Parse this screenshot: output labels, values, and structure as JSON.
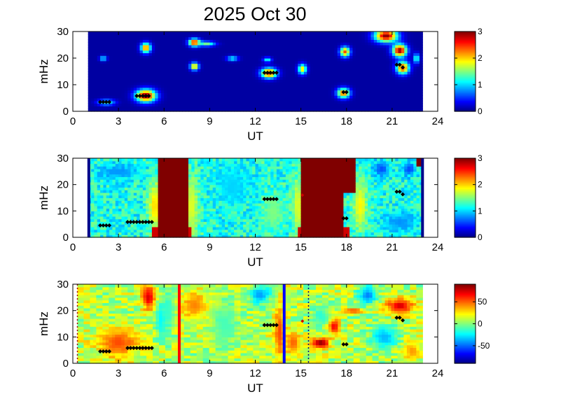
{
  "figure": {
    "title": "2025 Oct 30"
  },
  "chart_data": [
    {
      "type": "heatmap",
      "xlabel": "UT",
      "ylabel": "mHz",
      "xlim": [
        0,
        24
      ],
      "ylim": [
        0,
        30
      ],
      "xticks": [
        0,
        3,
        6,
        9,
        12,
        15,
        18,
        21,
        24
      ],
      "yticks": [
        0,
        10,
        20,
        30
      ],
      "data_range_x": [
        1,
        23
      ],
      "colorbar": {
        "min": 0,
        "max": 3,
        "ticks": [
          0,
          1,
          2,
          3
        ]
      },
      "background_value": 0.1,
      "blobs": [
        {
          "x": 4.8,
          "y": 6,
          "rx": 0.7,
          "ry": 2.5,
          "v": 3.0
        },
        {
          "x": 2.2,
          "y": 3.5,
          "rx": 0.6,
          "ry": 1.2,
          "v": 1.3
        },
        {
          "x": 4.8,
          "y": 24,
          "rx": 0.35,
          "ry": 2,
          "v": 2.4
        },
        {
          "x": 8.0,
          "y": 26,
          "rx": 0.4,
          "ry": 1.5,
          "v": 2.8
        },
        {
          "x": 8.8,
          "y": 25.5,
          "rx": 0.6,
          "ry": 1.0,
          "v": 1.5
        },
        {
          "x": 8.0,
          "y": 17,
          "rx": 0.3,
          "ry": 1.5,
          "v": 2.2
        },
        {
          "x": 12.9,
          "y": 14.5,
          "rx": 0.55,
          "ry": 2.0,
          "v": 2.7
        },
        {
          "x": 15.1,
          "y": 16,
          "rx": 0.3,
          "ry": 2,
          "v": 2.0
        },
        {
          "x": 17.8,
          "y": 7,
          "rx": 0.45,
          "ry": 2.0,
          "v": 2.4
        },
        {
          "x": 17.9,
          "y": 22.5,
          "rx": 0.35,
          "ry": 2,
          "v": 2.4
        },
        {
          "x": 20.6,
          "y": 28.5,
          "rx": 0.8,
          "ry": 2.5,
          "v": 3.0
        },
        {
          "x": 21.5,
          "y": 23,
          "rx": 0.5,
          "ry": 2.5,
          "v": 3.0
        },
        {
          "x": 21.7,
          "y": 16.5,
          "rx": 0.45,
          "ry": 2.5,
          "v": 2.6
        },
        {
          "x": 2.0,
          "y": 20,
          "rx": 0.25,
          "ry": 1,
          "v": 1.2
        },
        {
          "x": 10.5,
          "y": 20,
          "rx": 0.4,
          "ry": 1,
          "v": 1.2
        },
        {
          "x": 12.8,
          "y": 19.5,
          "rx": 0.3,
          "ry": 1,
          "v": 1.2
        },
        {
          "x": 22.6,
          "y": 20,
          "rx": 0.2,
          "ry": 2,
          "v": 1.4
        }
      ],
      "markers": [
        {
          "x": [
            1.8,
            2.0,
            2.2,
            2.4
          ],
          "y": 3.5
        },
        {
          "x": [
            4.2,
            4.4,
            4.6,
            4.8,
            5.0
          ],
          "y": 5.8
        },
        {
          "x": [
            12.6,
            12.8,
            13.0,
            13.2,
            13.4
          ],
          "y": 14.5
        },
        {
          "x": [
            17.8,
            18.0
          ],
          "y": 7.2
        },
        {
          "x": [
            21.3,
            21.5
          ],
          "y": 17.5
        },
        {
          "x": [
            21.7
          ],
          "y": 16.5
        }
      ]
    },
    {
      "type": "heatmap",
      "xlabel": "UT",
      "ylabel": "mHz",
      "xlim": [
        0,
        24
      ],
      "ylim": [
        0,
        30
      ],
      "xticks": [
        0,
        3,
        6,
        9,
        12,
        15,
        18,
        21,
        24
      ],
      "yticks": [
        0,
        10,
        20,
        30
      ],
      "data_range_x": [
        1,
        23
      ],
      "colorbar": {
        "min": 0,
        "max": 3,
        "ticks": [
          0,
          1,
          2,
          3
        ]
      },
      "background_value": 1.2,
      "edge_lines": [
        1.05,
        23.0
      ],
      "saturated_regions": [
        {
          "x0": 5.6,
          "x1": 7.5,
          "y0": 0,
          "y1": 30
        },
        {
          "x0": 15.1,
          "x1": 17.8,
          "y0": 0,
          "y1": 30
        },
        {
          "x0": 17.8,
          "x1": 18.6,
          "y0": 17,
          "y1": 30
        },
        {
          "x0": 22.6,
          "x1": 23.0,
          "y0": 27,
          "y1": 30
        }
      ],
      "blobs": [
        {
          "x": 5.4,
          "y": 12,
          "rx": 0.5,
          "ry": 10,
          "v": 2.0
        },
        {
          "x": 7.8,
          "y": 12,
          "rx": 0.5,
          "ry": 12,
          "v": 1.8
        },
        {
          "x": 14.8,
          "y": 12,
          "rx": 0.4,
          "ry": 12,
          "v": 1.8
        },
        {
          "x": 18.9,
          "y": 12,
          "rx": 0.5,
          "ry": 10,
          "v": 1.9
        },
        {
          "x": 3.0,
          "y": 25,
          "rx": 1.5,
          "ry": 3,
          "v": 0.8
        },
        {
          "x": 20.3,
          "y": 26,
          "rx": 0.6,
          "ry": 3,
          "v": 0.6
        },
        {
          "x": 22.1,
          "y": 26,
          "rx": 0.5,
          "ry": 3,
          "v": 0.6
        },
        {
          "x": 10.5,
          "y": 20,
          "rx": 1.2,
          "ry": 8,
          "v": 1.0
        },
        {
          "x": 13.2,
          "y": 10,
          "rx": 0.8,
          "ry": 8,
          "v": 1.5
        },
        {
          "x": 21.5,
          "y": 6,
          "rx": 1.2,
          "ry": 4,
          "v": 0.8
        }
      ],
      "markers": [
        {
          "x": [
            1.8,
            2.0,
            2.2,
            2.4
          ],
          "y": 4.5
        },
        {
          "x": [
            3.6,
            3.8,
            4.0,
            4.2,
            4.4,
            4.6,
            4.8,
            5.0,
            5.2
          ],
          "y": 5.8
        },
        {
          "x": [
            12.6,
            12.8,
            13.0,
            13.2,
            13.4
          ],
          "y": 14.5
        },
        {
          "x": [
            17.8,
            18.0
          ],
          "y": 7.2
        },
        {
          "x": [
            21.3,
            21.5
          ],
          "y": 17.3
        },
        {
          "x": [
            21.7
          ],
          "y": 16.3
        }
      ],
      "red_markers": [
        {
          "x": 15.1,
          "y": 16
        }
      ]
    },
    {
      "type": "heatmap",
      "xlabel": "UT",
      "ylabel": "mHz",
      "xlim": [
        0,
        24
      ],
      "ylim": [
        0,
        30
      ],
      "xticks": [
        0,
        3,
        6,
        9,
        12,
        15,
        18,
        21,
        24
      ],
      "yticks": [
        0,
        10,
        20,
        30
      ],
      "data_range_x": [
        0.3,
        23
      ],
      "colorbar": {
        "min": -90,
        "max": 90,
        "ticks": [
          50,
          0,
          -50
        ]
      },
      "background_value": 10,
      "vertical_lines": [
        {
          "x": 7.0,
          "color": "#ff0000"
        },
        {
          "x": 13.9,
          "color": "#0000ff"
        }
      ],
      "dotted_lines": [
        {
          "x": 0.3,
          "color": "#aa0000"
        },
        {
          "x": 15.5,
          "color": "#000080"
        }
      ],
      "blobs": [
        {
          "x": 3.0,
          "y": 8,
          "rx": 1.5,
          "ry": 6,
          "v": 55
        },
        {
          "x": 5.0,
          "y": 25,
          "rx": 0.5,
          "ry": 5,
          "v": 75
        },
        {
          "x": 5.8,
          "y": 17,
          "rx": 0.4,
          "ry": 8,
          "v": -25
        },
        {
          "x": 6.3,
          "y": 20,
          "rx": 0.5,
          "ry": 10,
          "v": -15
        },
        {
          "x": 8.0,
          "y": 22,
          "rx": 1.0,
          "ry": 6,
          "v": 45
        },
        {
          "x": 10.0,
          "y": 15,
          "rx": 1.0,
          "ry": 10,
          "v": -10
        },
        {
          "x": 12.3,
          "y": 26,
          "rx": 0.8,
          "ry": 4,
          "v": -40
        },
        {
          "x": 13.6,
          "y": 12,
          "rx": 0.4,
          "ry": 12,
          "v": 55
        },
        {
          "x": 14.5,
          "y": 8,
          "rx": 0.6,
          "ry": 5,
          "v": 50
        },
        {
          "x": 16.3,
          "y": 8,
          "rx": 0.6,
          "ry": 2,
          "v": 90
        },
        {
          "x": 16.3,
          "y": 18,
          "rx": 0.7,
          "ry": 5,
          "v": -15
        },
        {
          "x": 18.5,
          "y": 20,
          "rx": 0.8,
          "ry": 1,
          "v": 60
        },
        {
          "x": 19.4,
          "y": 26,
          "rx": 0.7,
          "ry": 4,
          "v": -45
        },
        {
          "x": 21.5,
          "y": 22,
          "rx": 1.0,
          "ry": 3,
          "v": 75
        },
        {
          "x": 20.5,
          "y": 10,
          "rx": 1.0,
          "ry": 5,
          "v": -35
        },
        {
          "x": 22.3,
          "y": 5,
          "rx": 0.6,
          "ry": 4,
          "v": 40
        },
        {
          "x": 17.2,
          "y": 14,
          "rx": 0.4,
          "ry": 3,
          "v": 70
        }
      ],
      "markers": [
        {
          "x": [
            1.8,
            2.0,
            2.2,
            2.4
          ],
          "y": 4.5
        },
        {
          "x": [
            3.6,
            3.8,
            4.0,
            4.2,
            4.4,
            4.6,
            4.8,
            5.0,
            5.2
          ],
          "y": 5.8
        },
        {
          "x": [
            12.6,
            12.8,
            13.0,
            13.2,
            13.4
          ],
          "y": 14.5
        },
        {
          "x": [
            17.8,
            18.0
          ],
          "y": 7.2
        },
        {
          "x": [
            21.3,
            21.5
          ],
          "y": 17.3
        },
        {
          "x": [
            21.7
          ],
          "y": 16.3
        }
      ],
      "red_markers": [
        {
          "x": 15.1,
          "y": 16
        }
      ]
    }
  ]
}
